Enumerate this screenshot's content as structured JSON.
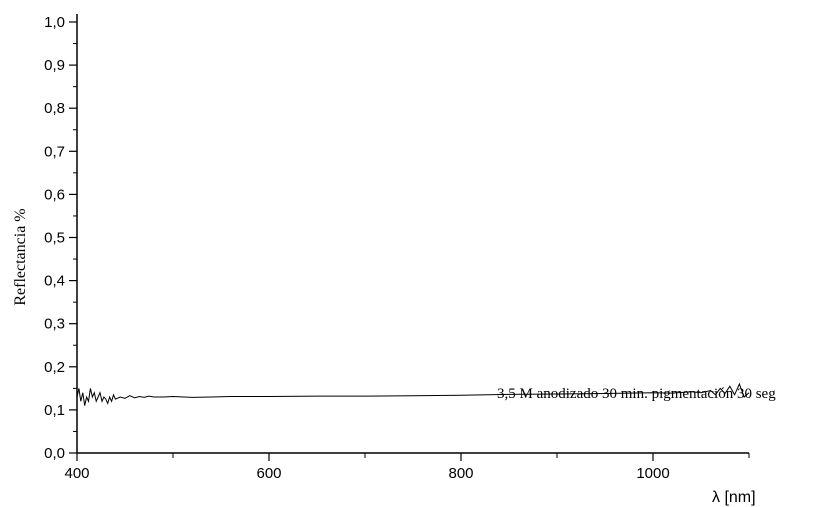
{
  "chart_data": {
    "type": "line",
    "title": "",
    "xlabel": "λ [nm]",
    "ylabel": "Reflectancia %",
    "xlim": [
      400,
      1100
    ],
    "ylim": [
      0.0,
      1.0
    ],
    "x_ticks": [
      {
        "value": 400,
        "label": "400"
      },
      {
        "value": 600,
        "label": "600"
      },
      {
        "value": 800,
        "label": "800"
      },
      {
        "value": 1000,
        "label": "1000"
      }
    ],
    "y_ticks": [
      {
        "value": 0.0,
        "label": "0,0"
      },
      {
        "value": 0.1,
        "label": "0,1"
      },
      {
        "value": 0.2,
        "label": "0,2"
      },
      {
        "value": 0.3,
        "label": "0,3"
      },
      {
        "value": 0.4,
        "label": "0,4"
      },
      {
        "value": 0.5,
        "label": "0,5"
      },
      {
        "value": 0.6,
        "label": "0,6"
      },
      {
        "value": 0.7,
        "label": "0,7"
      },
      {
        "value": 0.8,
        "label": "0,8"
      },
      {
        "value": 0.9,
        "label": "0,9"
      },
      {
        "value": 1.0,
        "label": "1,0"
      }
    ],
    "grid": false,
    "annotation": "3,5 M anodizado 30 min. pigmentación 30 seg",
    "series": [
      {
        "color": "#000000",
        "x": [
          400,
          402,
          404,
          406,
          408,
          410,
          412,
          414,
          416,
          418,
          420,
          422,
          424,
          426,
          428,
          430,
          432,
          434,
          436,
          438,
          440,
          445,
          450,
          455,
          460,
          465,
          470,
          475,
          480,
          490,
          500,
          520,
          540,
          560,
          580,
          600,
          650,
          700,
          750,
          800,
          850,
          900,
          950,
          1000,
          1020,
          1040,
          1050,
          1060,
          1065,
          1070,
          1075,
          1080,
          1085,
          1090,
          1095,
          1100
        ],
        "y": [
          0.13,
          0.15,
          0.12,
          0.14,
          0.11,
          0.13,
          0.12,
          0.15,
          0.13,
          0.14,
          0.12,
          0.13,
          0.14,
          0.12,
          0.13,
          0.125,
          0.115,
          0.13,
          0.12,
          0.135,
          0.125,
          0.13,
          0.127,
          0.133,
          0.128,
          0.131,
          0.129,
          0.132,
          0.13,
          0.13,
          0.131,
          0.129,
          0.13,
          0.131,
          0.131,
          0.131,
          0.132,
          0.132,
          0.133,
          0.134,
          0.136,
          0.137,
          0.138,
          0.14,
          0.139,
          0.142,
          0.14,
          0.145,
          0.135,
          0.15,
          0.138,
          0.155,
          0.135,
          0.16,
          0.13,
          0.14
        ]
      }
    ]
  }
}
